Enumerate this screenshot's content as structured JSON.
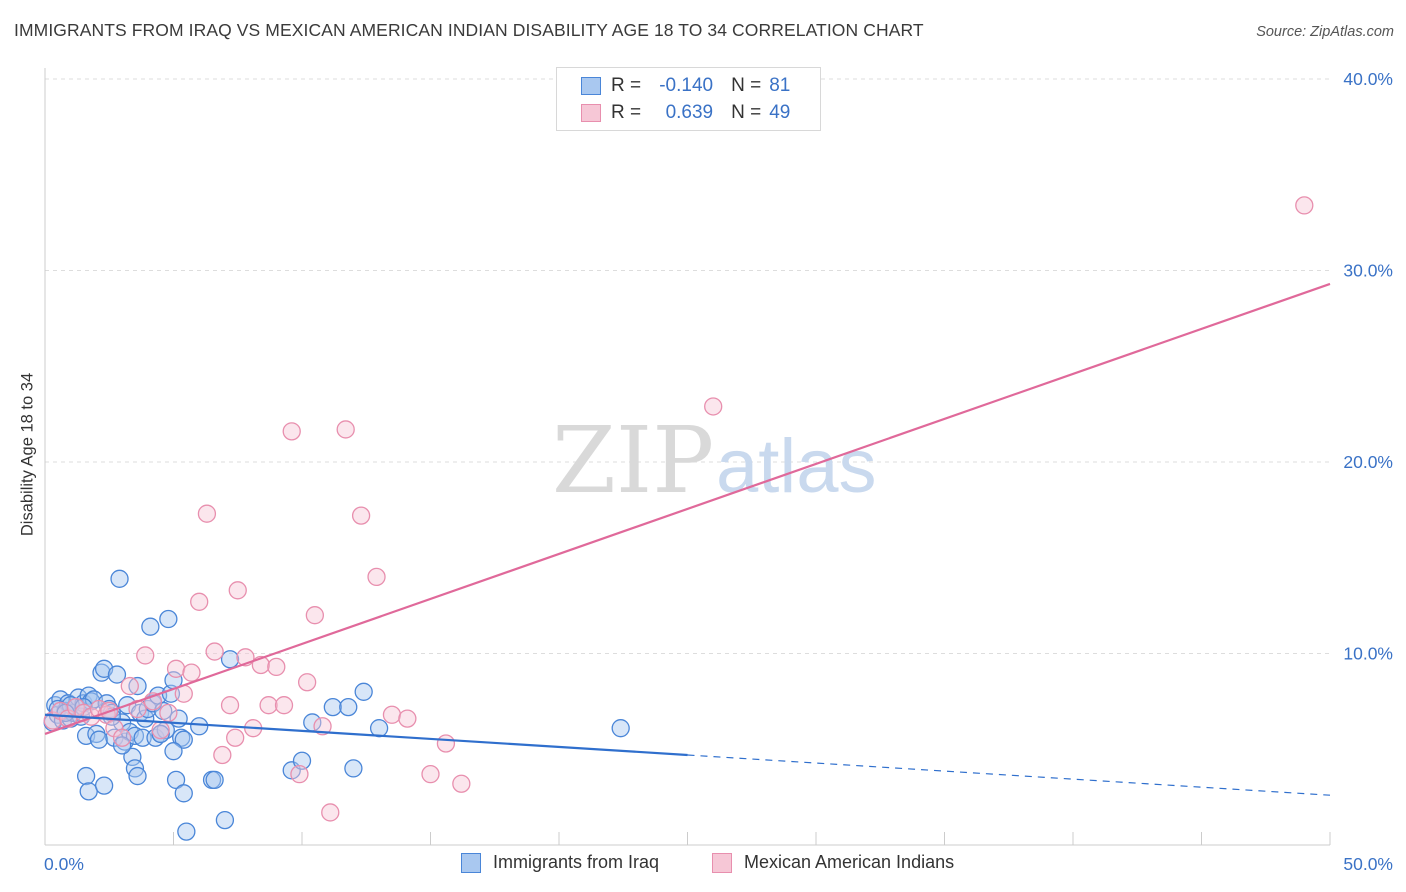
{
  "header": {
    "title": "IMMIGRANTS FROM IRAQ VS MEXICAN AMERICAN INDIAN DISABILITY AGE 18 TO 34 CORRELATION CHART",
    "source": "Source: ZipAtlas.com"
  },
  "watermark": {
    "zip": "ZIP",
    "atlas": "atlas"
  },
  "legend": {
    "r_label": "R =",
    "n_label": "N =",
    "rows": [
      {
        "r": "-0.140",
        "n": "81"
      },
      {
        "r": "0.639",
        "n": "49"
      }
    ]
  },
  "colors": {
    "blue_stroke": "#4a86d8",
    "blue_fill": "#a9c8f0",
    "blue_line": "#2f6fcd",
    "pink_stroke": "#e88fae",
    "pink_fill": "#f6c7d6",
    "pink_line": "#e0699a",
    "grid": "#dddddd",
    "axis_text": "#3a72c6"
  },
  "chart_data": {
    "type": "scatter",
    "title": "IMMIGRANTS FROM IRAQ VS MEXICAN AMERICAN INDIAN DISABILITY AGE 18 TO 34 CORRELATION CHART",
    "xlabel": "",
    "ylabel": "Disability Age 18 to 34",
    "xlim": [
      0,
      50
    ],
    "ylim": [
      0,
      40
    ],
    "x_tick_labels": [
      "0.0%",
      "50.0%"
    ],
    "y_ticks": [
      10,
      20,
      30,
      40
    ],
    "y_tick_labels": [
      "10.0%",
      "20.0%",
      "30.0%",
      "40.0%"
    ],
    "series": [
      {
        "name": "Immigrants from Iraq",
        "r": -0.14,
        "n": 81,
        "trend": {
          "x0": 0,
          "y0": 6.8,
          "x1": 25,
          "y1": 4.7,
          "dash_x1": 50,
          "dash_y1": 2.6
        },
        "points": [
          [
            0.3,
            6.4
          ],
          [
            0.4,
            7.3
          ],
          [
            0.5,
            6.8
          ],
          [
            0.6,
            7.6
          ],
          [
            0.7,
            6.5
          ],
          [
            0.8,
            7.0
          ],
          [
            0.9,
            7.4
          ],
          [
            1.0,
            6.6
          ],
          [
            1.1,
            6.9
          ],
          [
            1.2,
            7.2
          ],
          [
            1.3,
            7.7
          ],
          [
            1.4,
            6.7
          ],
          [
            1.5,
            7.4
          ],
          [
            1.6,
            5.7
          ],
          [
            1.7,
            7.8
          ],
          [
            1.8,
            7.5
          ],
          [
            1.9,
            7.6
          ],
          [
            2.0,
            5.8
          ],
          [
            2.1,
            5.5
          ],
          [
            2.2,
            9.0
          ],
          [
            2.3,
            9.2
          ],
          [
            2.4,
            7.4
          ],
          [
            2.5,
            7.1
          ],
          [
            2.6,
            6.9
          ],
          [
            2.7,
            5.6
          ],
          [
            2.8,
            8.9
          ],
          [
            2.9,
            13.9
          ],
          [
            3.0,
            6.4
          ],
          [
            3.1,
            5.4
          ],
          [
            3.2,
            7.3
          ],
          [
            3.3,
            5.9
          ],
          [
            3.4,
            4.6
          ],
          [
            3.5,
            5.7
          ],
          [
            3.6,
            8.3
          ],
          [
            3.7,
            6.9
          ],
          [
            3.8,
            5.6
          ],
          [
            3.9,
            6.6
          ],
          [
            4.0,
            7.1
          ],
          [
            4.1,
            11.4
          ],
          [
            4.2,
            7.4
          ],
          [
            4.3,
            5.6
          ],
          [
            4.4,
            7.8
          ],
          [
            4.5,
            5.8
          ],
          [
            4.6,
            7.0
          ],
          [
            4.7,
            6.0
          ],
          [
            4.8,
            11.8
          ],
          [
            4.9,
            7.9
          ],
          [
            5.0,
            8.6
          ],
          [
            5.1,
            3.4
          ],
          [
            5.2,
            6.6
          ],
          [
            5.3,
            5.6
          ],
          [
            5.4,
            5.5
          ],
          [
            6.0,
            6.2
          ],
          [
            6.5,
            3.4
          ],
          [
            7.0,
            1.3
          ],
          [
            7.2,
            9.7
          ],
          [
            9.6,
            3.9
          ],
          [
            10.0,
            4.4
          ],
          [
            10.4,
            6.4
          ],
          [
            11.2,
            7.2
          ],
          [
            11.8,
            7.2
          ],
          [
            12.4,
            8.0
          ],
          [
            13.0,
            6.1
          ],
          [
            3.5,
            4.0
          ],
          [
            3.6,
            3.6
          ],
          [
            4.5,
            5.8
          ],
          [
            0.5,
            7.1
          ],
          [
            1.0,
            7.3
          ],
          [
            1.6,
            3.6
          ],
          [
            1.7,
            2.8
          ],
          [
            2.3,
            3.1
          ],
          [
            3.0,
            5.2
          ],
          [
            5.0,
            4.9
          ],
          [
            5.4,
            2.7
          ],
          [
            5.5,
            0.7
          ],
          [
            6.6,
            3.4
          ],
          [
            0.8,
            6.9
          ],
          [
            1.5,
            7.2
          ],
          [
            2.6,
            6.7
          ],
          [
            12.0,
            4.0
          ],
          [
            22.4,
            6.1
          ]
        ]
      },
      {
        "name": "Mexican American Indians",
        "r": 0.639,
        "n": 49,
        "trend": {
          "x0": 0,
          "y0": 5.8,
          "x1": 50,
          "y1": 29.3
        },
        "points": [
          [
            0.3,
            6.5
          ],
          [
            0.6,
            7.0
          ],
          [
            0.9,
            6.6
          ],
          [
            1.2,
            7.2
          ],
          [
            1.5,
            6.9
          ],
          [
            1.8,
            6.7
          ],
          [
            2.1,
            7.1
          ],
          [
            2.4,
            6.8
          ],
          [
            2.7,
            6.1
          ],
          [
            3.0,
            5.6
          ],
          [
            3.3,
            8.3
          ],
          [
            3.6,
            7.1
          ],
          [
            3.9,
            9.9
          ],
          [
            4.2,
            7.5
          ],
          [
            4.5,
            6.0
          ],
          [
            4.8,
            6.9
          ],
          [
            5.1,
            9.2
          ],
          [
            5.4,
            7.9
          ],
          [
            5.7,
            9.0
          ],
          [
            6.0,
            12.7
          ],
          [
            6.3,
            17.3
          ],
          [
            6.6,
            10.1
          ],
          [
            6.9,
            4.7
          ],
          [
            7.2,
            7.3
          ],
          [
            7.5,
            13.3
          ],
          [
            7.8,
            9.8
          ],
          [
            8.1,
            6.1
          ],
          [
            8.4,
            9.4
          ],
          [
            8.7,
            7.3
          ],
          [
            9.0,
            9.3
          ],
          [
            9.3,
            7.3
          ],
          [
            9.6,
            21.6
          ],
          [
            9.9,
            3.7
          ],
          [
            10.2,
            8.5
          ],
          [
            10.5,
            12.0
          ],
          [
            10.8,
            6.2
          ],
          [
            11.1,
            1.7
          ],
          [
            11.7,
            21.7
          ],
          [
            12.3,
            17.2
          ],
          [
            12.9,
            14.0
          ],
          [
            13.5,
            6.8
          ],
          [
            14.1,
            6.6
          ],
          [
            15.0,
            3.7
          ],
          [
            15.6,
            5.3
          ],
          [
            16.2,
            3.2
          ],
          [
            26.0,
            22.9
          ],
          [
            49.0,
            33.4
          ],
          [
            2.5,
            7.0
          ],
          [
            7.4,
            5.6
          ]
        ]
      }
    ]
  }
}
